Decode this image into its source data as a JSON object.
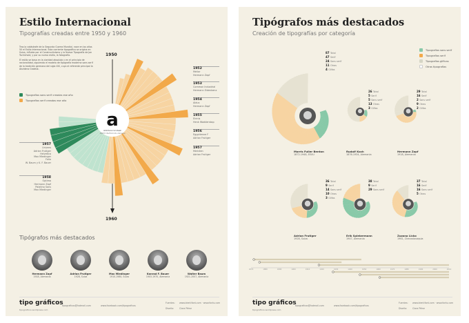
{
  "left": {
    "title": "Estilo Internacional",
    "subtitle": "Tipografías creadas entre 1950 y 1960",
    "intro": [
      "Tras la catástrofe de la Segunda Guerra Mundial, nace en los años 50 el Estilo Internacional. Esta corriente tipográfica se origina en Suiza, influida por el Constructivismo y la Nueva Tipografía de Jan Tschichold, y por su nuevo estilo, la fotografía.",
      "El estilo se basa en la claridad absoluta y en el principio de racionalidad, siguiendo el modelo de tipografía moderna sans serif de la tradición germana del siglo XIX, cuyo el referente principal la Akzidenz Grotesk."
    ],
    "legend": {
      "sans": "Tipografías sans serif creadas ese año",
      "serif": "Tipografías serif creadas ese año"
    },
    "center_letter": "a",
    "center_caption": "Akzidenz Grotesk",
    "center_caption2": "1898 H. Berthold AG, Alemania",
    "year_start": "1950",
    "year_end": "1960",
    "right_entries": [
      {
        "year": "1952",
        "font": "Melior",
        "author": "Hermann Zapf"
      },
      {
        "year": "1953",
        "font": "Common Industrial",
        "author": "Hermann Eidenbenz"
      },
      {
        "year": "1954",
        "font": "Aldus",
        "author": "Hermann Zapf"
      },
      {
        "year": "1955",
        "font": "Eirinis",
        "author": "Henk Wadderskop"
      },
      {
        "year": "1956",
        "font": "Egyptienne F",
        "author": "Adrian Frutiger"
      },
      {
        "year": "1957",
        "font": "Meridien",
        "author": "Adrian Frutiger"
      }
    ],
    "left_entries": [
      {
        "year": "1957",
        "lines": [
          "Univers",
          "Adrian Frutiger",
          "Helvetica",
          "Max Miedinger",
          "Folio",
          "W. Baum y K. F. Bauer"
        ]
      },
      {
        "year": "1958",
        "lines": [
          "Optima",
          "Hermann Zapf",
          "Palatino Sans",
          "Max Miedinger"
        ]
      }
    ],
    "people_title": "Tipógrafos más destacados",
    "people": [
      {
        "name": "Hermann Zapf",
        "info": "1918, Alemania"
      },
      {
        "name": "Adrian Frutiger",
        "info": "1928, Suiza"
      },
      {
        "name": "Max Miedinger",
        "info": "1910-1980, Suiza"
      },
      {
        "name": "Konrad F. Bauer",
        "info": "1903-1970, Alemania"
      },
      {
        "name": "Walter Baum",
        "info": "1921-2007, Alemania"
      }
    ],
    "footer_logo": "tipo gráficos",
    "footer_sub": "tipograficos.wordpress.com",
    "footer_mail": "tipograficos@hotmail.com",
    "footer_web": "www.facebook.com/tipograficos",
    "footer_sources_label": "Fuentes:",
    "footer_sources": "www.identifont.com · www.fonts.com",
    "footer_design_label": "Diseño:",
    "footer_design": "Clara Pérez"
  },
  "right": {
    "title": "Tipógrafos más destacados",
    "subtitle": "Creación de tipografías por categoría",
    "legend": {
      "sans": "Tipografías sans serif",
      "serif": "Tipografías serif",
      "glifo": "Tipografías glíficas",
      "otras": "Otras tipografías"
    },
    "spirals": [
      {
        "name": "Morris Fuller Benton",
        "info": "1872-1948, EEUU",
        "total": "87",
        "sans": "24",
        "serif": "47",
        "other": "11",
        "glyph": "4"
      },
      {
        "name": "Rudolf Koch",
        "info": "1876-1934, Alemania",
        "total": "26",
        "sans": "5",
        "serif": "5",
        "other": "13",
        "glyph": "3"
      },
      {
        "name": "Hermann Zapf",
        "info": "1918, Alemania",
        "total": "29",
        "sans": "2",
        "serif": "16",
        "other": "9",
        "glyph": "2"
      },
      {
        "name": "Adrian Frutiger",
        "info": "1928, Suiza",
        "total": "36",
        "sans": "14",
        "serif": "9",
        "other": "10",
        "glyph": "3"
      },
      {
        "name": "Erik Spiekermann",
        "info": "1947, Alemania",
        "total": "38",
        "sans": "29",
        "serif": "9",
        "other": "",
        "glyph": ""
      },
      {
        "name": "Zuzana Licko",
        "info": "1961, Checoslovaquia",
        "total": "37",
        "sans": "16",
        "serif": "16",
        "other": "5",
        "glyph": ""
      }
    ],
    "label_total": "Total",
    "label_sans": "Sans serif",
    "label_serif": "Serif",
    "label_other": "Otras",
    "label_glyph": "Glifos",
    "timeline_years": [
      "1870",
      "1880",
      "1890",
      "1900",
      "1910",
      "1920",
      "1930",
      "1940",
      "1950",
      "1960",
      "1970",
      "1980",
      "1990",
      "2000",
      "2010"
    ],
    "colors": {
      "sans": "#88c9a8",
      "sans_light": "#bfe3cf",
      "serif": "#f2a94a",
      "serif_light": "#f7d4a2",
      "dark": "#2e8a5c"
    }
  }
}
